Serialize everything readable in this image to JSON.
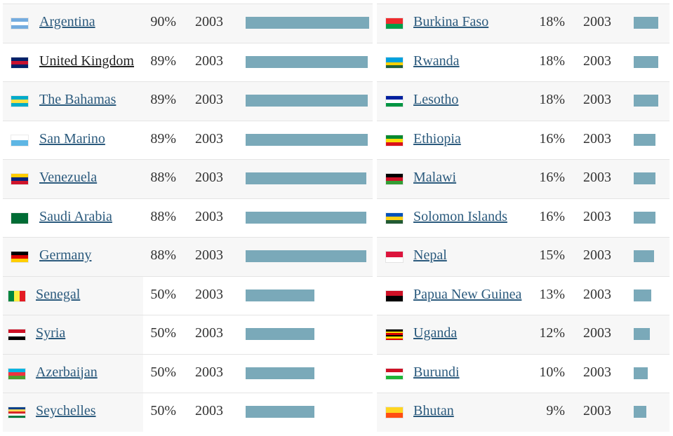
{
  "chart_data": {
    "type": "bar",
    "title": "",
    "xlabel": "",
    "ylabel": "",
    "ylim": [
      0,
      90
    ],
    "columns": [
      {
        "rows": [
          {
            "country": "Argentina",
            "percent": 90,
            "percent_label": "90%",
            "year": "2003",
            "flag_icon": "argentina-flag-icon",
            "flag_colors": [
              "#74acdf",
              "#ffffff",
              "#74acdf"
            ]
          },
          {
            "country": "United Kingdom",
            "percent": 89,
            "percent_label": "89%",
            "year": "2003",
            "flag_icon": "united-kingdom-flag-icon",
            "flag_colors": [
              "#012169",
              "#c8102e",
              "#012169"
            ]
          },
          {
            "country": "The Bahamas",
            "percent": 89,
            "percent_label": "89%",
            "year": "2003",
            "flag_icon": "bahamas-flag-icon",
            "flag_colors": [
              "#00abc9",
              "#fae042",
              "#00abc9"
            ]
          },
          {
            "country": "San Marino",
            "percent": 89,
            "percent_label": "89%",
            "year": "2003",
            "flag_icon": "san-marino-flag-icon",
            "flag_colors": [
              "#ffffff",
              "#5eb6e4"
            ]
          },
          {
            "country": "Venezuela",
            "percent": 88,
            "percent_label": "88%",
            "year": "2003",
            "flag_icon": "venezuela-flag-icon",
            "flag_colors": [
              "#ffcc00",
              "#00247d",
              "#cf142b"
            ]
          },
          {
            "country": "Saudi Arabia",
            "percent": 88,
            "percent_label": "88%",
            "year": "2003",
            "flag_icon": "saudi-arabia-flag-icon",
            "flag_colors": [
              "#006c35",
              "#006c35"
            ]
          },
          {
            "country": "Germany",
            "percent": 88,
            "percent_label": "88%",
            "year": "2003",
            "flag_icon": "germany-flag-icon",
            "flag_colors": [
              "#000000",
              "#dd0000",
              "#ffce00"
            ]
          },
          {
            "country": "Senegal",
            "percent": 50,
            "percent_label": "50%",
            "year": "2003",
            "flag_icon": "senegal-flag-icon",
            "flag_colors": [
              "#00853f",
              "#fdef42",
              "#e31b23"
            ],
            "vertical": true
          },
          {
            "country": "Syria",
            "percent": 50,
            "percent_label": "50%",
            "year": "2003",
            "flag_icon": "syria-flag-icon",
            "flag_colors": [
              "#ce1126",
              "#ffffff",
              "#000000"
            ]
          },
          {
            "country": "Azerbaijan",
            "percent": 50,
            "percent_label": "50%",
            "year": "2003",
            "flag_icon": "azerbaijan-flag-icon",
            "flag_colors": [
              "#00b5e2",
              "#ef3340",
              "#509e2f"
            ]
          },
          {
            "country": "Seychelles",
            "percent": 50,
            "percent_label": "50%",
            "year": "2003",
            "flag_icon": "seychelles-flag-icon",
            "flag_colors": [
              "#003f87",
              "#fcd856",
              "#d62828",
              "#ffffff",
              "#007a3d"
            ]
          }
        ]
      },
      {
        "rows": [
          {
            "country": "Burkina Faso",
            "percent": 18,
            "percent_label": "18%",
            "year": "2003",
            "flag_icon": "burkina-faso-flag-icon",
            "flag_colors": [
              "#ef2b2d",
              "#009e49"
            ]
          },
          {
            "country": "Rwanda",
            "percent": 18,
            "percent_label": "18%",
            "year": "2003",
            "flag_icon": "rwanda-flag-icon",
            "flag_colors": [
              "#00a1de",
              "#00a1de",
              "#fad201",
              "#20603d"
            ]
          },
          {
            "country": "Lesotho",
            "percent": 18,
            "percent_label": "18%",
            "year": "2003",
            "flag_icon": "lesotho-flag-icon",
            "flag_colors": [
              "#00209f",
              "#ffffff",
              "#009543"
            ]
          },
          {
            "country": "Ethiopia",
            "percent": 16,
            "percent_label": "16%",
            "year": "2003",
            "flag_icon": "ethiopia-flag-icon",
            "flag_colors": [
              "#078930",
              "#fcdd09",
              "#da121a"
            ]
          },
          {
            "country": "Malawi",
            "percent": 16,
            "percent_label": "16%",
            "year": "2003",
            "flag_icon": "malawi-flag-icon",
            "flag_colors": [
              "#000000",
              "#ce1126",
              "#339e35"
            ]
          },
          {
            "country": "Solomon Islands",
            "percent": 16,
            "percent_label": "16%",
            "year": "2003",
            "flag_icon": "solomon-islands-flag-icon",
            "flag_colors": [
              "#0051ba",
              "#fcd116",
              "#215b33"
            ]
          },
          {
            "country": "Nepal",
            "percent": 15,
            "percent_label": "15%",
            "year": "2003",
            "flag_icon": "nepal-flag-icon",
            "flag_colors": [
              "#dc143c",
              "#ffffff"
            ]
          },
          {
            "country": "Papua New Guinea",
            "percent": 13,
            "percent_label": "13%",
            "year": "2003",
            "flag_icon": "papua-new-guinea-flag-icon",
            "flag_colors": [
              "#ce1126",
              "#000000"
            ]
          },
          {
            "country": "Uganda",
            "percent": 12,
            "percent_label": "12%",
            "year": "2003",
            "flag_icon": "uganda-flag-icon",
            "flag_colors": [
              "#000000",
              "#fcdc04",
              "#d90000",
              "#000000",
              "#fcdc04",
              "#d90000"
            ]
          },
          {
            "country": "Burundi",
            "percent": 10,
            "percent_label": "10%",
            "year": "2003",
            "flag_icon": "burundi-flag-icon",
            "flag_colors": [
              "#ce1126",
              "#ffffff",
              "#1eb53a"
            ]
          },
          {
            "country": "Bhutan",
            "percent": 9,
            "percent_label": "9%",
            "year": "2003",
            "flag_icon": "bhutan-flag-icon",
            "flag_colors": [
              "#ffd520",
              "#ff4e12"
            ]
          }
        ]
      }
    ]
  },
  "colors": {
    "bar": "#7aa9b9",
    "link": "#2b5a7d",
    "row_shade": "#f7f7f7",
    "divider": "#e4e4e4"
  }
}
